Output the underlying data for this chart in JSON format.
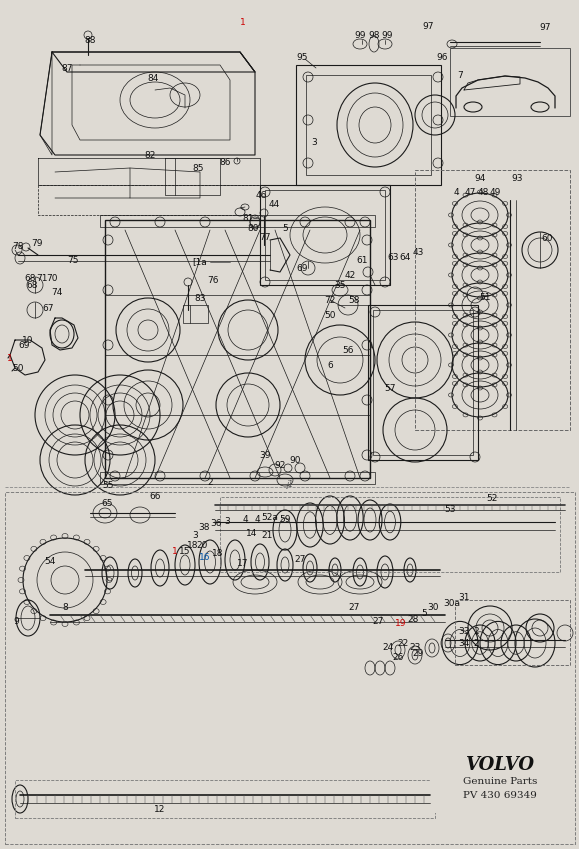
{
  "bg_color": "#dedad3",
  "line_color": "#1a1a1a",
  "red_label_color": "#cc0000",
  "blue_label_color": "#0055aa",
  "label_color": "#111111",
  "volvo_text": "VOLVO",
  "subtitle_text": "Genuine Parts",
  "part_number": "PV 430 69349",
  "figsize": [
    5.79,
    8.49
  ],
  "dpi": 100,
  "lw_thin": 0.5,
  "lw_med": 0.8,
  "lw_thick": 1.2,
  "lw_case": 1.0,
  "label_fs": 7.0,
  "label_fs_sm": 6.5
}
